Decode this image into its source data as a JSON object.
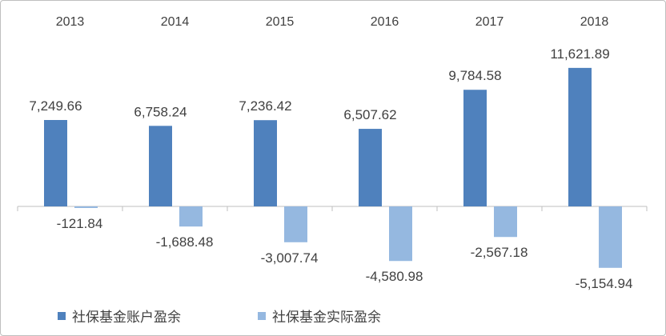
{
  "chart_data": {
    "type": "bar",
    "categories": [
      "2013",
      "2014",
      "2015",
      "2016",
      "2017",
      "2018"
    ],
    "series": [
      {
        "name": "社保基金账户盈余",
        "values": [
          7249.66,
          6758.24,
          7236.42,
          6507.62,
          9784.58,
          11621.89
        ],
        "labels": [
          "7,249.66",
          "6,758.24",
          "7,236.42",
          "6,507.62",
          "9,784.58",
          "11,621.89"
        ],
        "color": "#4f81bd"
      },
      {
        "name": "社保基金实际盈余",
        "values": [
          -121.84,
          -1688.48,
          -3007.74,
          -4580.98,
          -2567.18,
          -5154.94
        ],
        "labels": [
          "-121.84",
          "-1,688.48",
          "-3,007.74",
          "-4,580.98",
          "-2,567.18",
          "-5,154.94"
        ],
        "color": "#95b8e0"
      }
    ],
    "x_axis_position": "top",
    "grid": false,
    "legend_position": "bottom-left"
  }
}
